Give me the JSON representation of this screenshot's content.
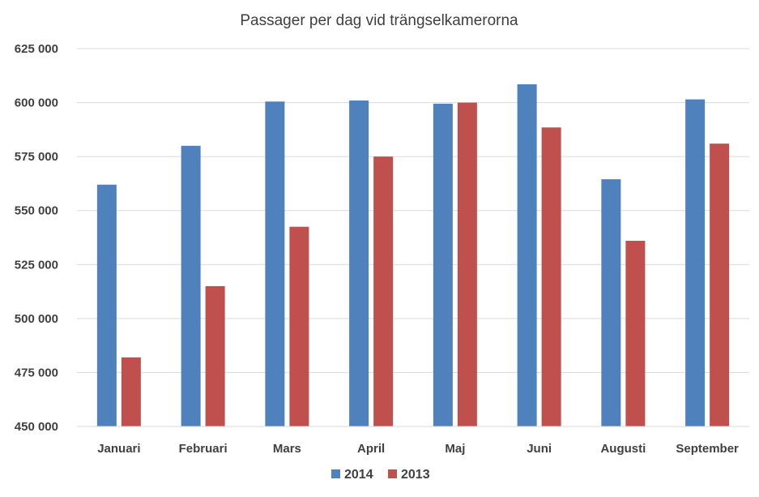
{
  "chart_data": {
    "type": "bar",
    "title": "Passager per dag vid trängselkamerorna",
    "xlabel": "",
    "ylabel": "",
    "ylim": [
      450000,
      625000
    ],
    "yticks": [
      450000,
      475000,
      500000,
      525000,
      550000,
      575000,
      600000,
      625000
    ],
    "ytick_labels": [
      "450 000",
      "475 000",
      "500 000",
      "525 000",
      "550 000",
      "575 000",
      "600 000",
      "625 000"
    ],
    "categories": [
      "Januari",
      "Februari",
      "Mars",
      "April",
      "Maj",
      "Juni",
      "Augusti",
      "September"
    ],
    "series": [
      {
        "name": "2014",
        "color": "#4f81bd",
        "values": [
          562000,
          580000,
          600500,
          601000,
          599500,
          608500,
          564500,
          601500
        ]
      },
      {
        "name": "2013",
        "color": "#c0504d",
        "values": [
          482000,
          515000,
          542500,
          575000,
          600000,
          588500,
          536000,
          581000
        ]
      }
    ],
    "grid": true,
    "legend_position": "bottom"
  }
}
